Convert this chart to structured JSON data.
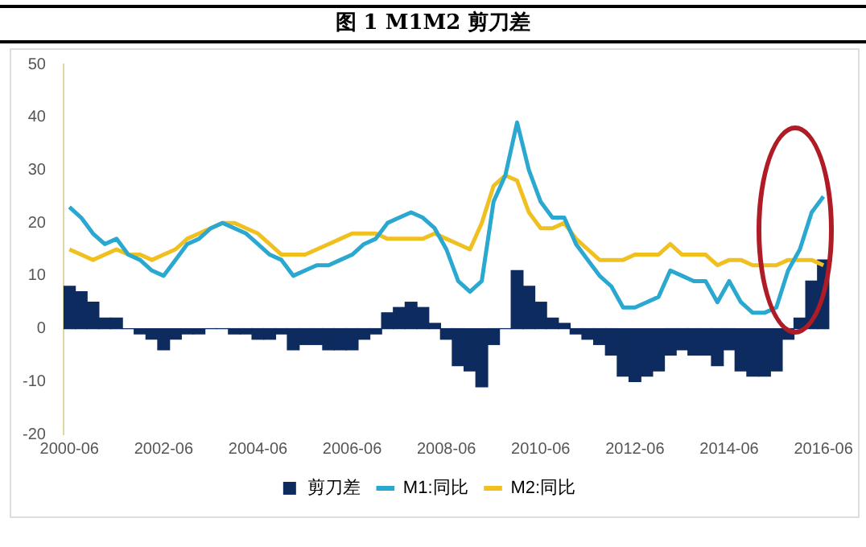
{
  "chart_data": {
    "type": "bar",
    "title": "图 1   M1M2 剪刀差",
    "categories": [
      "2000-06",
      null,
      null,
      null,
      null,
      null,
      null,
      null,
      "2002-06",
      null,
      null,
      null,
      null,
      null,
      null,
      null,
      "2004-06",
      null,
      null,
      null,
      null,
      null,
      null,
      null,
      "2006-06",
      null,
      null,
      null,
      null,
      null,
      null,
      null,
      "2008-06",
      null,
      null,
      null,
      null,
      null,
      null,
      null,
      "2010-06",
      null,
      null,
      null,
      null,
      null,
      null,
      null,
      "2012-06",
      null,
      null,
      null,
      null,
      null,
      null,
      null,
      "2014-06",
      null,
      null,
      null,
      null,
      null,
      null,
      null,
      "2016-06"
    ],
    "series": [
      {
        "name": "剪刀差",
        "color": "#0d2b5e",
        "values": [
          8,
          7,
          5,
          2,
          2,
          0,
          -1,
          -2,
          -4,
          -2,
          -1,
          -1,
          0,
          0,
          -1,
          -1,
          -2,
          -2,
          -1,
          -4,
          -3,
          -3,
          -4,
          -4,
          -4,
          -2,
          -1,
          3,
          4,
          5,
          4,
          1,
          -2,
          -7,
          -8,
          -11,
          -3,
          0,
          11,
          8,
          5,
          2,
          1,
          -1,
          -2,
          -3,
          -5,
          -9,
          -10,
          -9,
          -8,
          -5,
          -4,
          -5,
          -5,
          -7,
          -4,
          -8,
          -9,
          -9,
          -8,
          -2,
          2,
          9,
          13
        ]
      },
      {
        "name": "M1:同比",
        "type": "line",
        "color": "#2aa8d0",
        "values": [
          23,
          21,
          18,
          16,
          17,
          14,
          13,
          11,
          10,
          13,
          16,
          17,
          19,
          20,
          19,
          18,
          16,
          14,
          13,
          10,
          11,
          12,
          12,
          13,
          14,
          16,
          17,
          20,
          21,
          22,
          21,
          19,
          15,
          9,
          7,
          9,
          24,
          29,
          39,
          30,
          24,
          21,
          21,
          16,
          13,
          10,
          8,
          4,
          4,
          5,
          6,
          11,
          10,
          9,
          9,
          5,
          9,
          5,
          3,
          3,
          4,
          11,
          15,
          22,
          25
        ]
      },
      {
        "name": "M2:同比",
        "type": "line",
        "color": "#f0c020",
        "values": [
          15,
          14,
          13,
          14,
          15,
          14,
          14,
          13,
          14,
          15,
          17,
          18,
          19,
          20,
          20,
          19,
          18,
          16,
          14,
          14,
          14,
          15,
          16,
          17,
          18,
          18,
          18,
          17,
          17,
          17,
          17,
          18,
          17,
          16,
          15,
          20,
          27,
          29,
          28,
          22,
          19,
          19,
          20,
          17,
          15,
          13,
          13,
          13,
          14,
          14,
          14,
          16,
          14,
          14,
          14,
          12,
          13,
          13,
          12,
          12,
          12,
          13,
          13,
          13,
          12
        ]
      }
    ],
    "ylim": [
      -20,
      50
    ],
    "yticks": [
      -20,
      -10,
      0,
      10,
      20,
      30,
      40,
      50
    ],
    "grid": false,
    "legend": "bottom",
    "marker": "none"
  }
}
